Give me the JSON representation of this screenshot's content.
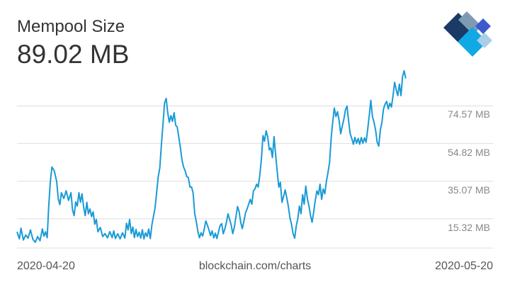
{
  "header": {
    "title": "Mempool Size",
    "current_value": "89.02 MB"
  },
  "footer": {
    "start_date": "2020-04-20",
    "source": "blockchain.com/charts",
    "end_date": "2020-05-20"
  },
  "logo": {
    "icon": "blockchain-logo-icon",
    "colors": [
      "#1b3a66",
      "#7f9ab3",
      "#3d5acd",
      "#10a9e6",
      "#a9cfe8"
    ]
  },
  "colors": {
    "line": "#1a9ad6",
    "grid": "#dddddd"
  },
  "chart_data": {
    "type": "line",
    "title": "Mempool Size",
    "xlabel": "",
    "ylabel": "",
    "x_range": [
      "2020-04-20",
      "2020-05-20"
    ],
    "ylim": [
      0,
      90
    ],
    "y_ticks": [
      {
        "value": 15.32,
        "label": "15.32 MB"
      },
      {
        "value": 35.07,
        "label": "35.07 MB"
      },
      {
        "value": 54.82,
        "label": "54.82 MB"
      },
      {
        "value": 74.57,
        "label": "74.57 MB"
      }
    ],
    "grid": true,
    "series": [
      {
        "values": [
          [
            0.0,
            8.5
          ],
          [
            0.15,
            4.8
          ],
          [
            0.25,
            10.4
          ],
          [
            0.4,
            4.2
          ],
          [
            0.55,
            6.8
          ],
          [
            0.7,
            5.2
          ],
          [
            0.85,
            9.5
          ],
          [
            1.0,
            4.6
          ],
          [
            1.15,
            3.0
          ],
          [
            1.3,
            6.0
          ],
          [
            1.45,
            3.8
          ],
          [
            1.6,
            10.0
          ],
          [
            1.7,
            6.2
          ],
          [
            1.8,
            8.5
          ],
          [
            1.9,
            5.4
          ],
          [
            2.0,
            22.0
          ],
          [
            2.1,
            34.5
          ],
          [
            2.2,
            42.5
          ],
          [
            2.35,
            40.5
          ],
          [
            2.5,
            35.0
          ],
          [
            2.6,
            26.0
          ],
          [
            2.7,
            22.8
          ],
          [
            2.8,
            29.0
          ],
          [
            2.95,
            26.0
          ],
          [
            3.1,
            30.0
          ],
          [
            3.25,
            25.0
          ],
          [
            3.4,
            29.0
          ],
          [
            3.5,
            20.0
          ],
          [
            3.6,
            17.0
          ],
          [
            3.7,
            24.2
          ],
          [
            3.8,
            22.0
          ],
          [
            3.9,
            29.0
          ],
          [
            4.0,
            24.0
          ],
          [
            4.1,
            28.5
          ],
          [
            4.2,
            21.5
          ],
          [
            4.3,
            17.0
          ],
          [
            4.4,
            24.0
          ],
          [
            4.5,
            18.0
          ],
          [
            4.6,
            20.5
          ],
          [
            4.7,
            16.5
          ],
          [
            4.8,
            19.0
          ],
          [
            4.9,
            12.5
          ],
          [
            5.0,
            15.0
          ],
          [
            5.1,
            8.5
          ],
          [
            5.25,
            10.8
          ],
          [
            5.4,
            6.0
          ],
          [
            5.55,
            7.6
          ],
          [
            5.7,
            5.3
          ],
          [
            5.85,
            8.6
          ],
          [
            6.0,
            5.5
          ],
          [
            6.1,
            9.0
          ],
          [
            6.2,
            5.0
          ],
          [
            6.35,
            7.5
          ],
          [
            6.5,
            4.8
          ],
          [
            6.65,
            8.0
          ],
          [
            6.8,
            5.2
          ],
          [
            6.9,
            13.0
          ],
          [
            7.0,
            9.5
          ],
          [
            7.1,
            15.0
          ],
          [
            7.2,
            7.6
          ],
          [
            7.3,
            11.0
          ],
          [
            7.4,
            5.5
          ],
          [
            7.5,
            9.8
          ],
          [
            7.6,
            6.0
          ],
          [
            7.7,
            8.3
          ],
          [
            7.8,
            5.2
          ],
          [
            7.9,
            9.6
          ],
          [
            8.0,
            4.8
          ],
          [
            8.1,
            8.0
          ],
          [
            8.2,
            6.0
          ],
          [
            8.3,
            10.0
          ],
          [
            8.4,
            5.0
          ],
          [
            8.5,
            12.0
          ],
          [
            8.6,
            16.5
          ],
          [
            8.7,
            21.0
          ],
          [
            8.8,
            29.0
          ],
          [
            8.9,
            37.5
          ],
          [
            9.0,
            42.0
          ],
          [
            9.1,
            54.0
          ],
          [
            9.2,
            65.0
          ],
          [
            9.3,
            76.0
          ],
          [
            9.4,
            78.5
          ],
          [
            9.5,
            71.0
          ],
          [
            9.6,
            66.0
          ],
          [
            9.7,
            69.5
          ],
          [
            9.8,
            66.5
          ],
          [
            9.9,
            71.0
          ],
          [
            10.0,
            64.5
          ],
          [
            10.1,
            63.5
          ],
          [
            10.2,
            58.0
          ],
          [
            10.3,
            52.5
          ],
          [
            10.4,
            46.0
          ],
          [
            10.5,
            42.5
          ],
          [
            10.6,
            40.5
          ],
          [
            10.7,
            37.5
          ],
          [
            10.8,
            37.0
          ],
          [
            10.9,
            32.0
          ],
          [
            11.0,
            32.0
          ],
          [
            11.1,
            29.0
          ],
          [
            11.2,
            18.0
          ],
          [
            11.3,
            14.0
          ],
          [
            11.4,
            8.5
          ],
          [
            11.5,
            5.4
          ],
          [
            11.6,
            8.0
          ],
          [
            11.7,
            6.3
          ],
          [
            11.8,
            10.0
          ],
          [
            11.9,
            14.2
          ],
          [
            12.0,
            12.0
          ],
          [
            12.1,
            9.5
          ],
          [
            12.2,
            6.5
          ],
          [
            12.3,
            9.0
          ],
          [
            12.4,
            5.3
          ],
          [
            12.5,
            7.8
          ],
          [
            12.6,
            5.0
          ],
          [
            12.7,
            8.5
          ],
          [
            12.8,
            11.8
          ],
          [
            12.9,
            12.8
          ],
          [
            13.0,
            7.5
          ],
          [
            13.1,
            10.0
          ],
          [
            13.2,
            13.5
          ],
          [
            13.3,
            18.0
          ],
          [
            13.4,
            15.0
          ],
          [
            13.5,
            12.0
          ],
          [
            13.6,
            7.5
          ],
          [
            13.7,
            11.0
          ],
          [
            13.8,
            16.5
          ],
          [
            13.9,
            21.8
          ],
          [
            14.0,
            19.0
          ],
          [
            14.1,
            13.5
          ],
          [
            14.2,
            10.2
          ],
          [
            14.3,
            14.0
          ],
          [
            14.4,
            18.5
          ],
          [
            14.5,
            20.5
          ],
          [
            14.6,
            23.0
          ],
          [
            14.7,
            25.5
          ],
          [
            14.8,
            23.0
          ],
          [
            14.9,
            30.0
          ],
          [
            15.0,
            31.0
          ],
          [
            15.1,
            33.5
          ],
          [
            15.2,
            32.0
          ],
          [
            15.3,
            38.0
          ],
          [
            15.4,
            46.5
          ],
          [
            15.5,
            59.0
          ],
          [
            15.6,
            56.0
          ],
          [
            15.7,
            61.5
          ],
          [
            15.8,
            58.5
          ],
          [
            15.9,
            51.5
          ],
          [
            16.0,
            52.5
          ],
          [
            16.1,
            47.5
          ],
          [
            16.2,
            58.5
          ],
          [
            16.3,
            49.0
          ],
          [
            16.4,
            40.0
          ],
          [
            16.5,
            32.0
          ],
          [
            16.6,
            34.5
          ],
          [
            16.7,
            24.0
          ],
          [
            16.8,
            27.0
          ],
          [
            16.9,
            30.5
          ],
          [
            17.0,
            26.5
          ],
          [
            17.1,
            22.0
          ],
          [
            17.2,
            16.0
          ],
          [
            17.3,
            12.5
          ],
          [
            17.4,
            7.5
          ],
          [
            17.5,
            5.2
          ],
          [
            17.6,
            11.5
          ],
          [
            17.7,
            15.5
          ],
          [
            17.8,
            22.0
          ],
          [
            17.9,
            18.0
          ],
          [
            18.0,
            28.0
          ],
          [
            18.1,
            23.0
          ],
          [
            18.2,
            32.5
          ],
          [
            18.3,
            26.0
          ],
          [
            18.4,
            22.0
          ],
          [
            18.5,
            17.0
          ],
          [
            18.6,
            13.5
          ],
          [
            18.7,
            19.0
          ],
          [
            18.8,
            25.0
          ],
          [
            18.9,
            30.0
          ],
          [
            19.0,
            28.0
          ],
          [
            19.1,
            33.5
          ],
          [
            19.2,
            25.5
          ],
          [
            19.3,
            31.0
          ],
          [
            19.4,
            28.5
          ],
          [
            19.5,
            35.0
          ],
          [
            19.6,
            39.5
          ],
          [
            19.7,
            45.0
          ],
          [
            19.8,
            57.5
          ],
          [
            19.9,
            66.5
          ],
          [
            20.0,
            73.5
          ],
          [
            20.1,
            69.0
          ],
          [
            20.2,
            71.5
          ],
          [
            20.3,
            67.0
          ],
          [
            20.4,
            60.0
          ],
          [
            20.5,
            64.0
          ],
          [
            20.6,
            67.5
          ],
          [
            20.7,
            72.5
          ],
          [
            20.8,
            74.5
          ],
          [
            20.9,
            66.5
          ],
          [
            21.0,
            60.0
          ],
          [
            21.1,
            57.5
          ],
          [
            21.2,
            54.5
          ],
          [
            21.3,
            58.0
          ],
          [
            21.4,
            55.0
          ],
          [
            21.5,
            57.5
          ],
          [
            21.6,
            54.5
          ],
          [
            21.7,
            58.0
          ],
          [
            21.8,
            55.0
          ],
          [
            21.9,
            57.8
          ],
          [
            22.0,
            55.5
          ],
          [
            22.1,
            62.0
          ],
          [
            22.2,
            69.5
          ],
          [
            22.3,
            77.5
          ],
          [
            22.4,
            69.0
          ],
          [
            22.5,
            66.0
          ],
          [
            22.6,
            62.0
          ],
          [
            22.7,
            55.5
          ],
          [
            22.8,
            53.5
          ],
          [
            22.9,
            62.0
          ],
          [
            23.0,
            66.0
          ],
          [
            23.1,
            73.0
          ],
          [
            23.2,
            75.5
          ],
          [
            23.3,
            77.0
          ],
          [
            23.4,
            73.0
          ],
          [
            23.5,
            76.0
          ],
          [
            23.6,
            74.0
          ],
          [
            23.7,
            80.0
          ],
          [
            23.8,
            87.0
          ],
          [
            23.9,
            83.0
          ],
          [
            24.0,
            80.0
          ],
          [
            24.1,
            86.0
          ],
          [
            24.2,
            80.0
          ],
          [
            24.3,
            90.0
          ],
          [
            24.4,
            93.0
          ],
          [
            24.5,
            89.0
          ]
        ]
      }
    ]
  }
}
